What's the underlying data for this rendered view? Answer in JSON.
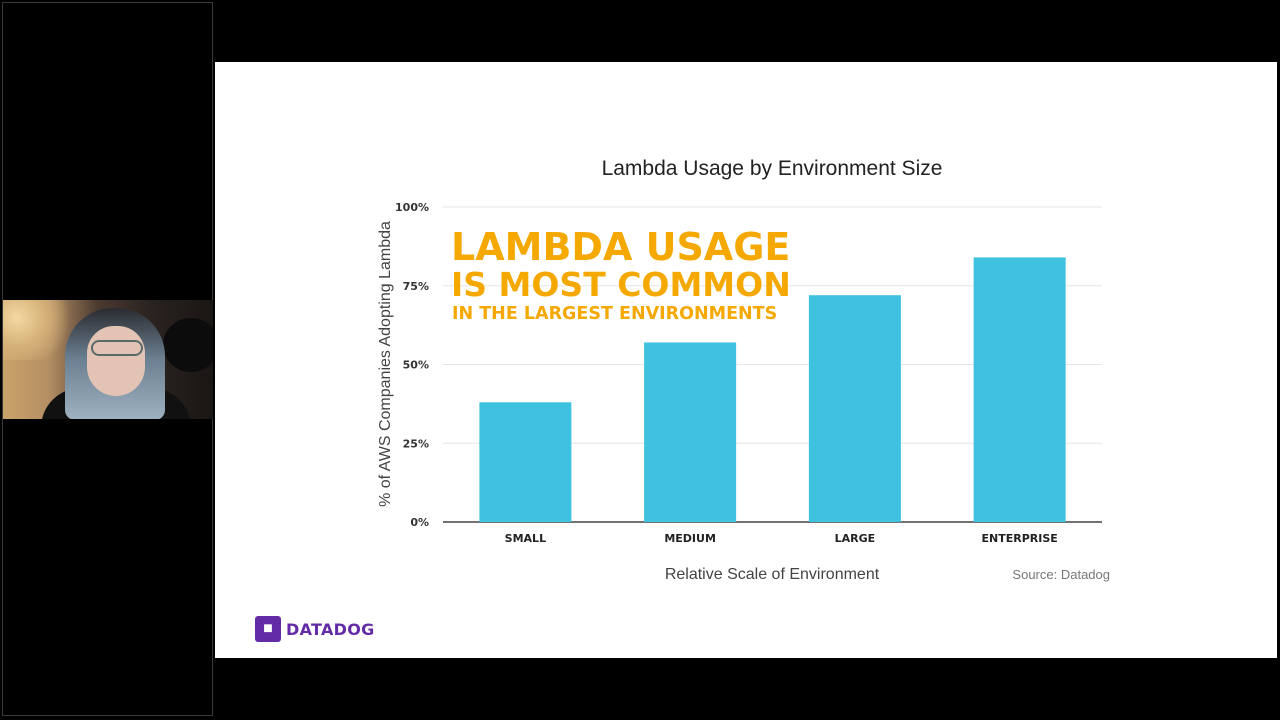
{
  "webcam": {
    "description": "presenter webcam feed"
  },
  "slide": {
    "logo_text": "DATADOG",
    "callout": {
      "line1": "LAMBDA USAGE",
      "line2": "IS MOST COMMON",
      "line3": "IN THE LARGEST ENVIRONMENTS",
      "color": "#f5a800"
    },
    "source": "Source: Datadog"
  },
  "colors": {
    "bar": "#3fc1e0",
    "brand": "#632ca6",
    "gridline": "#e6e6e6"
  },
  "chart_data": {
    "type": "bar",
    "title": "Lambda Usage by Environment Size",
    "xlabel": "Relative Scale of Environment",
    "ylabel": "% of AWS Companies Adopting Lambda",
    "categories": [
      "SMALL",
      "MEDIUM",
      "LARGE",
      "ENTERPRISE"
    ],
    "values": [
      38,
      57,
      72,
      84
    ],
    "ylim": [
      0,
      100
    ],
    "yticks": [
      0,
      25,
      50,
      75,
      100
    ],
    "ytick_labels": [
      "0%",
      "25%",
      "50%",
      "75%",
      "100%"
    ],
    "grid": true
  }
}
